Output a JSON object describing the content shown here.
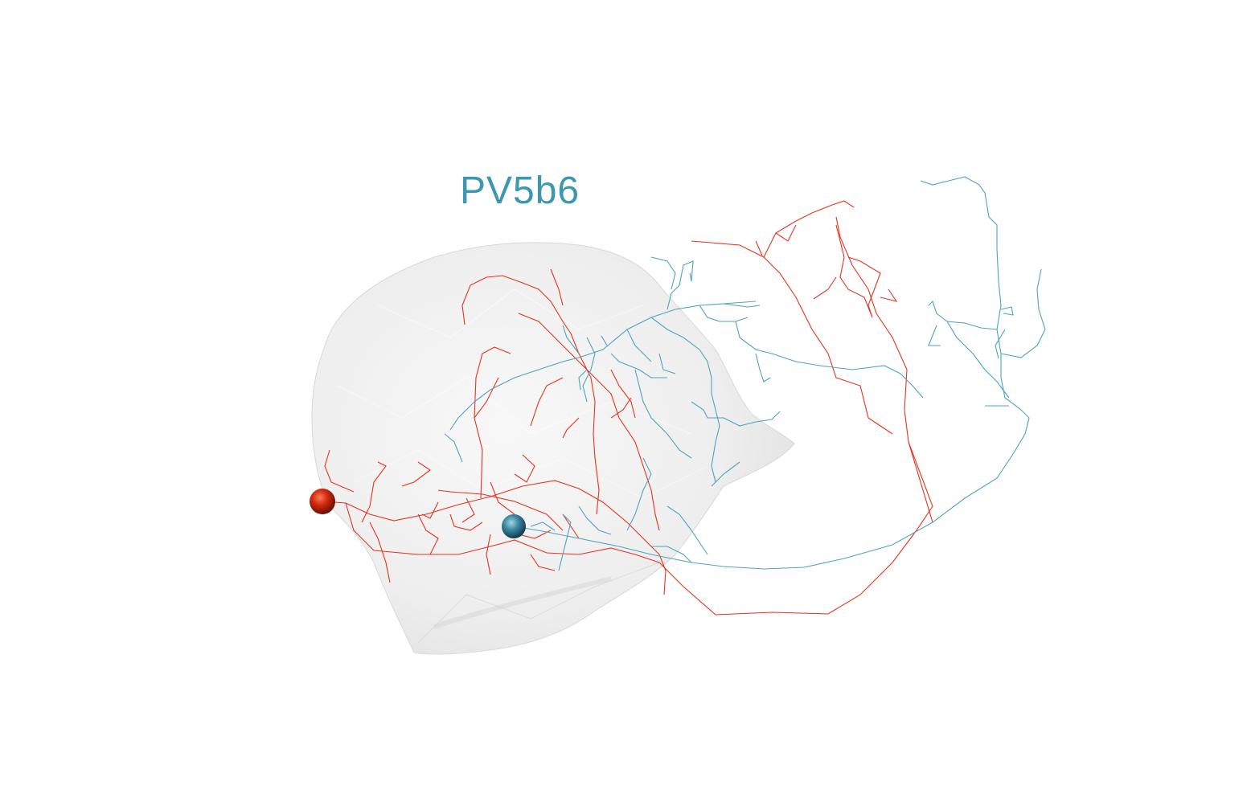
{
  "neuron_label": "PV5b6",
  "colors": {
    "red_neuron": "#e8321e",
    "blue_neuron": "#4fa3bd",
    "label": "#3e97b0",
    "neuropil_mesh": "#e6e6e6"
  }
}
